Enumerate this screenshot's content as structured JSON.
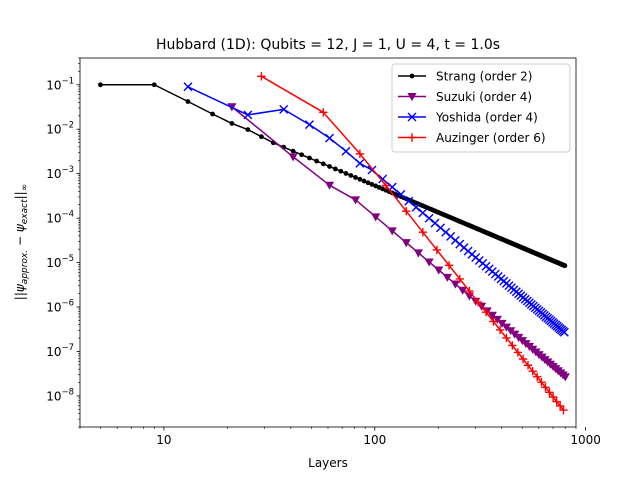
{
  "chart_data": {
    "type": "line",
    "title": "Hubbard (1D): Qubits = 12, J = 1, U = 4, t = 1.0s",
    "xlabel": "Layers",
    "ylabel_parts": {
      "prefix": "||",
      "psi1": "ψ",
      "sub1": "approx.",
      "minus": " − ",
      "psi2": "ψ",
      "sub2": "exact",
      "suffix": "||",
      "sub3": "∞"
    },
    "xscale": "log",
    "yscale": "log",
    "xlim": [
      4,
      900
    ],
    "ylim": [
      2e-09,
      0.4
    ],
    "xticks": [
      {
        "value": 10,
        "base": "10",
        "exp": ""
      },
      {
        "value": 100,
        "base": "100",
        "exp": ""
      },
      {
        "value": 1000,
        "base": "1000",
        "exp": ""
      }
    ],
    "yticks": [
      {
        "value": 1e-08,
        "base": "10",
        "exp": "−8"
      },
      {
        "value": 1e-07,
        "base": "10",
        "exp": "−7"
      },
      {
        "value": 1e-06,
        "base": "10",
        "exp": "−6"
      },
      {
        "value": 1e-05,
        "base": "10",
        "exp": "−5"
      },
      {
        "value": 0.0001,
        "base": "10",
        "exp": "−4"
      },
      {
        "value": 0.001,
        "base": "10",
        "exp": "−3"
      },
      {
        "value": 0.01,
        "base": "10",
        "exp": "−2"
      },
      {
        "value": 0.1,
        "base": "10",
        "exp": "−1"
      }
    ],
    "legend_position": "top-right",
    "grid": false,
    "series": [
      {
        "name": "Strang (order 2)",
        "color": "#000000",
        "marker": "dot",
        "order": 2,
        "x_start": 5,
        "x_step": 4,
        "x_end": 797,
        "points": [
          [
            5,
            0.1
          ],
          [
            9,
            0.1
          ],
          [
            13,
            0.042
          ],
          [
            17,
            0.022
          ],
          [
            21,
            0.0135
          ],
          [
            25,
            0.0098
          ],
          [
            29,
            0.0068
          ]
        ],
        "tail_ref": [
          797,
          8.5e-06
        ]
      },
      {
        "name": "Suzuki (order 4)",
        "color": "#800080",
        "marker": "triangle-down",
        "order": 4,
        "x_start": 21,
        "x_step": 20,
        "x_end": 801,
        "points": [
          [
            21,
            0.032
          ],
          [
            41,
            0.0024
          ],
          [
            61,
            0.00055
          ]
        ],
        "tail_ref": [
          801,
          2.7e-08
        ]
      },
      {
        "name": "Yoshida (order 4)",
        "color": "#0000ff",
        "marker": "x",
        "order": 4,
        "x_start": 13,
        "x_step": 12,
        "x_end": 793,
        "points": [
          [
            13,
            0.09
          ],
          [
            25,
            0.021
          ],
          [
            37,
            0.028
          ],
          [
            49,
            0.0127
          ],
          [
            61,
            0.0063
          ],
          [
            73,
            0.0032
          ],
          [
            85,
            0.0017
          ]
        ],
        "tail_ref": [
          793,
          2.7e-07
        ]
      },
      {
        "name": "Auzinger (order 6)",
        "color": "#ff0000",
        "marker": "plus",
        "order": 6,
        "x_start": 29,
        "x_step": 28,
        "x_end": 785,
        "points": [
          [
            29,
            0.155
          ],
          [
            57,
            0.024
          ],
          [
            85,
            0.0028
          ]
        ],
        "tail_ref": [
          785,
          4.8e-09
        ]
      }
    ]
  }
}
